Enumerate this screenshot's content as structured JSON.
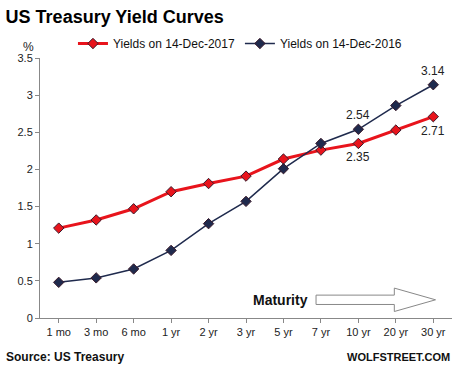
{
  "chart_data": {
    "type": "line",
    "title": "US Treasury Yield Curves",
    "ylabel": "%",
    "xlabel": "Maturity",
    "source": "Source: US Treasury",
    "credit": "WOLFSTREET.COM",
    "categories": [
      "1 mo",
      "3 mo",
      "6 mo",
      "1 yr",
      "2 yr",
      "3 yr",
      "5 yr",
      "7 yr",
      "10 yr",
      "20 yr",
      "30 yr"
    ],
    "series": [
      {
        "name": "Yields on 14-Dec-2017",
        "color": "#e8141c",
        "marker": "diamond",
        "values": [
          1.21,
          1.32,
          1.47,
          1.7,
          1.81,
          1.91,
          2.14,
          2.26,
          2.35,
          2.53,
          2.71
        ]
      },
      {
        "name": "Yields on 14-Dec-2016",
        "color": "#1f2a4d",
        "marker": "diamond",
        "values": [
          0.48,
          0.54,
          0.66,
          0.91,
          1.27,
          1.57,
          2.01,
          2.35,
          2.54,
          2.86,
          3.14
        ]
      }
    ],
    "annotations": [
      {
        "text": "2.54",
        "category": "10 yr",
        "value": 2.54
      },
      {
        "text": "3.14",
        "category": "30 yr",
        "value": 3.14
      },
      {
        "text": "2.35",
        "category": "10 yr",
        "value": 2.35
      },
      {
        "text": "2.71",
        "category": "30 yr",
        "value": 2.71
      }
    ],
    "ylim": [
      0,
      3.5
    ],
    "yticks": [
      0,
      0.5,
      1,
      1.5,
      2,
      2.5,
      3,
      3.5
    ],
    "grid": false,
    "legend": "top"
  }
}
